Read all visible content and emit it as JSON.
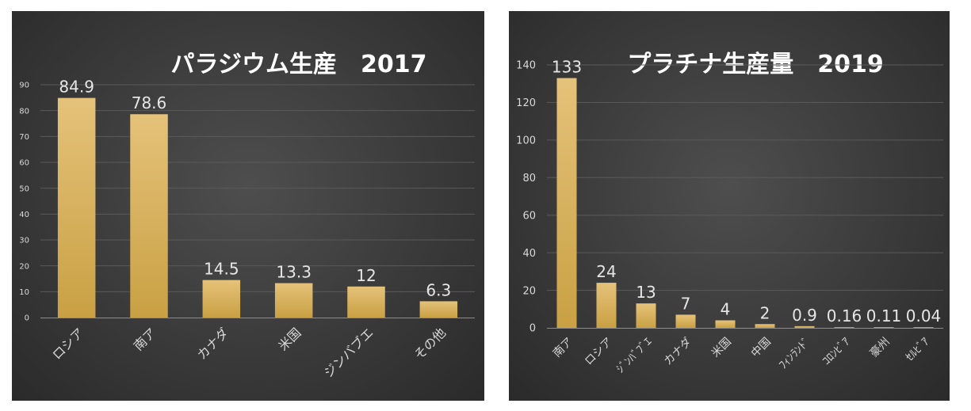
{
  "chart_data": [
    {
      "type": "bar",
      "title": "パラジウム生産　2017",
      "categories": [
        "ロシア",
        "南ア",
        "カナダ",
        "米国",
        "ジンバブエ",
        "その他"
      ],
      "values": [
        84.9,
        78.6,
        14.5,
        13.3,
        12,
        6.3
      ],
      "data_labels": [
        "84.9",
        "78.6",
        "14.5",
        "13.3",
        "12",
        "6.3"
      ],
      "ylim": [
        0,
        90
      ],
      "yticks": [
        "0",
        "10",
        "20",
        "30",
        "40",
        "50",
        "60",
        "70",
        "80",
        "90"
      ],
      "xlabel": "",
      "ylabel": "",
      "grid": true,
      "bar_color": "#d9b25a"
    },
    {
      "type": "bar",
      "title": "プラチナ生産量　2019",
      "categories": [
        "南ア",
        "ロシア",
        "ｼﾞﾝﾊﾞﾌﾞｴ",
        "カナダ",
        "米国",
        "中国",
        "ﾌｨﾝﾗﾝﾄﾞ",
        "ｺﾛﾝﾋﾞｱ",
        "豪州",
        "ｾﾙﾋﾞｱ"
      ],
      "values": [
        133,
        24,
        13,
        7,
        4,
        2,
        0.9,
        0.16,
        0.11,
        0.04
      ],
      "data_labels": [
        "133",
        "24",
        "13",
        "7",
        "4",
        "2",
        "0.9",
        "0.16",
        "0.11",
        "0.04"
      ],
      "ylim": [
        0,
        140
      ],
      "yticks": [
        "0",
        "20",
        "40",
        "60",
        "80",
        "100",
        "120",
        "140"
      ],
      "xlabel": "",
      "ylabel": "",
      "grid": true,
      "bar_color": "#d9b25a"
    }
  ]
}
